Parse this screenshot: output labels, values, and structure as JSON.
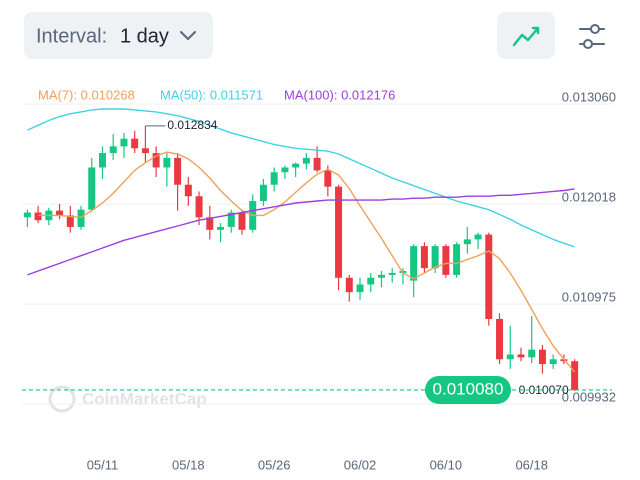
{
  "header": {
    "interval_label": "Interval:",
    "interval_value": "1 day"
  },
  "chart_data": {
    "type": "candlestick",
    "watermark": "CoinMarketCap",
    "up_color": "#16c784",
    "down_color": "#ea3943",
    "categories": [
      null,
      null,
      null,
      null,
      null,
      null,
      null,
      "05/11",
      null,
      null,
      null,
      null,
      null,
      null,
      null,
      "05/18",
      null,
      null,
      null,
      null,
      null,
      null,
      null,
      "05/26",
      null,
      null,
      null,
      null,
      null,
      null,
      null,
      "06/02",
      null,
      null,
      null,
      null,
      null,
      null,
      null,
      "06/10",
      null,
      null,
      null,
      null,
      null,
      null,
      null,
      "06/18",
      null,
      null,
      null,
      null
    ],
    "ohlc": [
      [
        0.01188,
        0.01196,
        0.01178,
        0.01193
      ],
      [
        0.01193,
        0.012,
        0.01182,
        0.01185
      ],
      [
        0.01185,
        0.01198,
        0.0118,
        0.01195
      ],
      [
        0.01195,
        0.01202,
        0.01186,
        0.0119
      ],
      [
        0.0119,
        0.012,
        0.01172,
        0.01178
      ],
      [
        0.01178,
        0.012,
        0.01175,
        0.01196
      ],
      [
        0.01196,
        0.0125,
        0.01194,
        0.0124
      ],
      [
        0.0124,
        0.01262,
        0.01228,
        0.01255
      ],
      [
        0.01255,
        0.01275,
        0.01248,
        0.01262
      ],
      [
        0.01262,
        0.01276,
        0.0125,
        0.0127
      ],
      [
        0.0127,
        0.01278,
        0.01255,
        0.0126
      ],
      [
        0.0126,
        0.012834,
        0.01245,
        0.01255
      ],
      [
        0.01255,
        0.01262,
        0.0123,
        0.0124
      ],
      [
        0.0124,
        0.01256,
        0.0122,
        0.0125
      ],
      [
        0.0125,
        0.01255,
        0.01195,
        0.01222
      ],
      [
        0.01222,
        0.0123,
        0.012,
        0.0121
      ],
      [
        0.0121,
        0.01215,
        0.0118,
        0.01188
      ],
      [
        0.01188,
        0.012,
        0.01165,
        0.01175
      ],
      [
        0.01175,
        0.01182,
        0.01162,
        0.01178
      ],
      [
        0.01178,
        0.01196,
        0.01172,
        0.01193
      ],
      [
        0.01193,
        0.01196,
        0.0117,
        0.01175
      ],
      [
        0.01175,
        0.01212,
        0.01172,
        0.01205
      ],
      [
        0.01205,
        0.01228,
        0.012,
        0.01222
      ],
      [
        0.01222,
        0.0124,
        0.01215,
        0.01235
      ],
      [
        0.01235,
        0.01242,
        0.01228,
        0.0124
      ],
      [
        0.0124,
        0.01245,
        0.0123,
        0.01244
      ],
      [
        0.01244,
        0.01255,
        0.01238,
        0.0125
      ],
      [
        0.0125,
        0.01262,
        0.01235,
        0.01237
      ],
      [
        0.01237,
        0.01242,
        0.0121,
        0.0122
      ],
      [
        0.0122,
        0.01222,
        0.01112,
        0.01125
      ],
      [
        0.01125,
        0.01128,
        0.011,
        0.0111
      ],
      [
        0.0111,
        0.01125,
        0.01102,
        0.01118
      ],
      [
        0.01118,
        0.0113,
        0.0111,
        0.01125
      ],
      [
        0.01125,
        0.01132,
        0.01115,
        0.01128
      ],
      [
        0.01128,
        0.01135,
        0.0112,
        0.0113
      ],
      [
        0.0113,
        0.01135,
        0.01118,
        0.01132
      ],
      [
        0.01122,
        0.0116,
        0.01105,
        0.01158
      ],
      [
        0.01158,
        0.01162,
        0.0113,
        0.01135
      ],
      [
        0.01135,
        0.0116,
        0.0113,
        0.01158
      ],
      [
        0.01158,
        0.0116,
        0.01125,
        0.01128
      ],
      [
        0.01128,
        0.01162,
        0.01125,
        0.0116
      ],
      [
        0.0116,
        0.01178,
        0.0115,
        0.01165
      ],
      [
        0.01165,
        0.01172,
        0.01155,
        0.0117
      ],
      [
        0.0117,
        0.01172,
        0.01075,
        0.01082
      ],
      [
        0.01082,
        0.01088,
        0.01035,
        0.0104
      ],
      [
        0.0104,
        0.01075,
        0.0103,
        0.01045
      ],
      [
        0.01045,
        0.01052,
        0.01038,
        0.01042
      ],
      [
        0.01042,
        0.01085,
        0.01036,
        0.0105
      ],
      [
        0.0105,
        0.01055,
        0.01025,
        0.01035
      ],
      [
        0.01035,
        0.01045,
        0.0103,
        0.0104
      ],
      [
        0.0104,
        0.01045,
        0.01035,
        0.01038
      ],
      [
        0.01038,
        0.0104,
        0.01007,
        0.01008
      ]
    ],
    "series": [
      {
        "name": "MA(7): 0.010268",
        "color": "#f0a05a",
        "values": [
          null,
          0.0119,
          0.0119,
          0.0119,
          0.01189,
          0.01188,
          0.01195,
          0.01203,
          0.01213,
          0.01225,
          0.01237,
          0.01245,
          0.01252,
          0.01256,
          0.01254,
          0.01249,
          0.0124,
          0.01229,
          0.01216,
          0.01205,
          0.01195,
          0.0119,
          0.0119,
          0.01196,
          0.01204,
          0.01214,
          0.01224,
          0.01233,
          0.01238,
          0.01232,
          0.01218,
          0.012,
          0.01183,
          0.01166,
          0.01148,
          0.0113,
          0.01124,
          0.0113,
          0.01136,
          0.0114,
          0.0114,
          0.01144,
          0.01148,
          0.01153,
          0.01145,
          0.0113,
          0.01112,
          0.01092,
          0.01072,
          0.01054,
          0.0104,
          0.010268
        ]
      },
      {
        "name": "MA(50): 0.011571",
        "color": "#3fd3e3",
        "values": [
          0.01279,
          0.01284,
          0.01289,
          0.01293,
          0.01296,
          0.01298,
          0.013,
          0.01301,
          0.01301,
          0.01301,
          0.013,
          0.01299,
          0.01298,
          0.01296,
          0.01294,
          0.01291,
          0.01288,
          0.01284,
          0.0128,
          0.01276,
          0.01273,
          0.0127,
          0.01267,
          0.01264,
          0.01262,
          0.0126,
          0.01259,
          0.01258,
          0.01257,
          0.01254,
          0.01249,
          0.01244,
          0.01239,
          0.01234,
          0.01229,
          0.01225,
          0.01221,
          0.01217,
          0.01213,
          0.01209,
          0.01205,
          0.01202,
          0.01199,
          0.01196,
          0.01191,
          0.01186,
          0.0118,
          0.01175,
          0.0117,
          0.01165,
          0.01161,
          0.011571
        ]
      },
      {
        "name": "MA(100): 0.012176",
        "color": "#9b3fe0",
        "values": [
          0.01128,
          0.01132,
          0.01136,
          0.0114,
          0.01144,
          0.01148,
          0.01152,
          0.01156,
          0.0116,
          0.01164,
          0.01167,
          0.0117,
          0.01173,
          0.01176,
          0.01179,
          0.01182,
          0.01185,
          0.01187,
          0.01189,
          0.01191,
          0.01193,
          0.01195,
          0.01197,
          0.01199,
          0.01201,
          0.01203,
          0.01204,
          0.01205,
          0.01206,
          0.01206,
          0.01206,
          0.01206,
          0.01206,
          0.01206,
          0.01207,
          0.01207,
          0.01208,
          0.01208,
          0.01209,
          0.01209,
          0.01209,
          0.0121,
          0.0121,
          0.0121,
          0.01211,
          0.01211,
          0.01212,
          0.01213,
          0.01214,
          0.01215,
          0.01216,
          0.012176
        ]
      }
    ],
    "ylim": [
      0.00985,
      0.01326
    ],
    "yticks": [
      {
        "value": 0.01306,
        "label": "0.013060"
      },
      {
        "value": 0.012018,
        "label": "0.012018"
      },
      {
        "value": 0.010975,
        "label": "0.010975"
      },
      {
        "value": 0.009932,
        "label": "0.009932"
      }
    ],
    "grid": true,
    "max_annotation": {
      "value": 0.012834,
      "label": "0.012834"
    },
    "min_annotation": {
      "value": 0.01007,
      "label": "0.010070"
    },
    "current_price": {
      "value": 0.01008,
      "label": "0.010080"
    }
  }
}
